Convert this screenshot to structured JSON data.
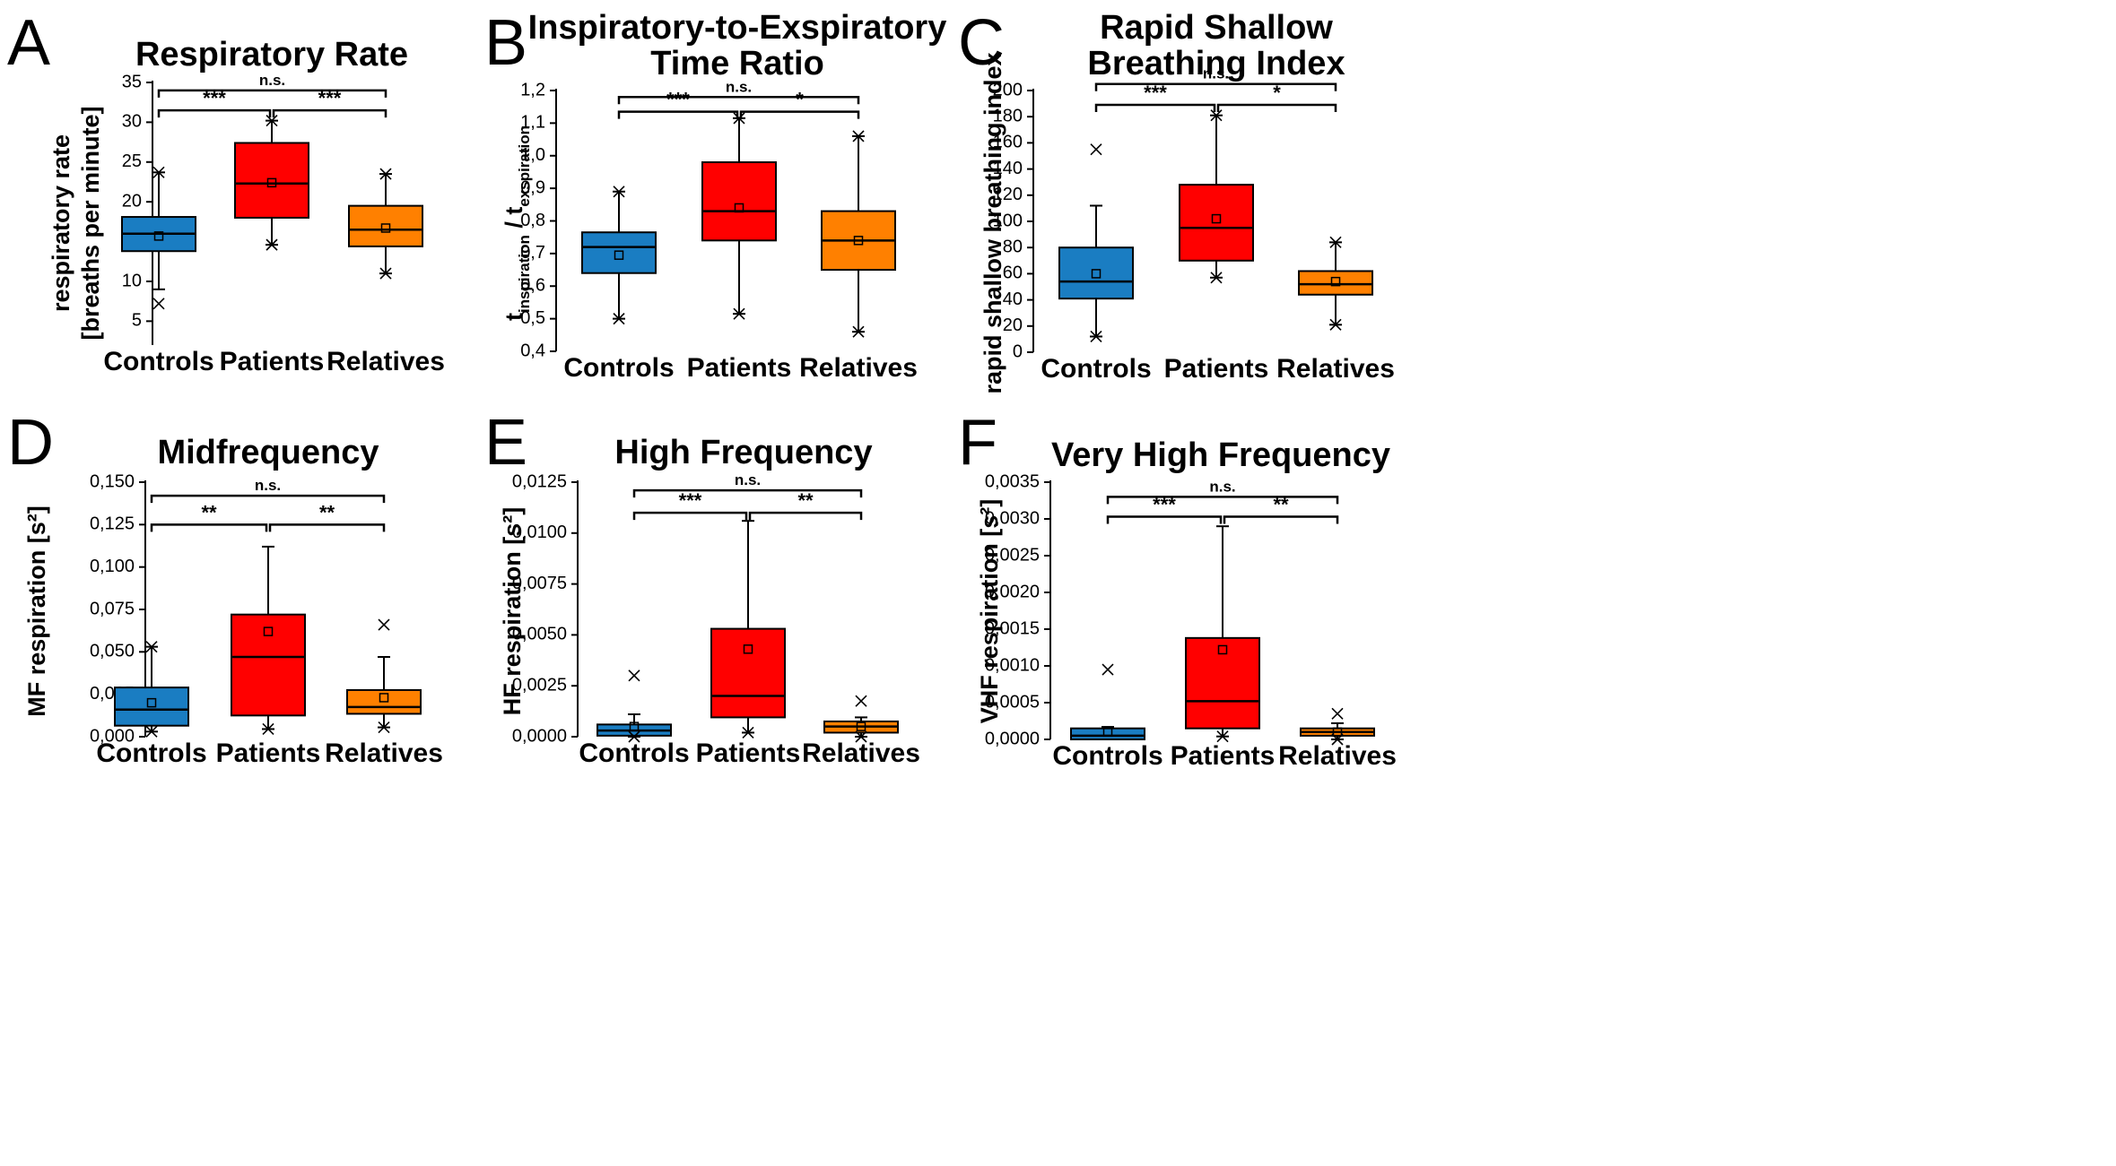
{
  "colors": {
    "controls": "#1a7dc2",
    "patients": "#ff0000",
    "relatives": "#ff8000",
    "ink": "#000000"
  },
  "chart_data": [
    {
      "type": "box",
      "panel_letter": "A",
      "title": [
        "Respiratory Rate"
      ],
      "ylabel": [
        "respiratory rate",
        "[breaths per minute]"
      ],
      "ylim": [
        2,
        35
      ],
      "yticks": [
        5,
        10,
        15,
        20,
        25,
        30,
        35
      ],
      "yticklabels": [
        "5",
        "10",
        "15",
        "20",
        "25",
        "30",
        "35"
      ],
      "categories": [
        "Controls",
        "Patients",
        "Relatives"
      ],
      "boxes": [
        {
          "q1": 13.8,
          "median": 16.0,
          "q3": 18.1,
          "mean": 15.7,
          "whisker_low": 9.0,
          "whisker_high": 23.7,
          "outliers": [
            7.2,
            23.7
          ]
        },
        {
          "q1": 18.0,
          "median": 22.3,
          "q3": 27.4,
          "mean": 22.4,
          "whisker_low": 14.6,
          "whisker_high": 30.2,
          "outliers": [
            14.6,
            30.2
          ]
        },
        {
          "q1": 14.4,
          "median": 16.5,
          "q3": 19.5,
          "mean": 16.7,
          "whisker_low": 11.0,
          "whisker_high": 23.5,
          "outliers": [
            11.0,
            23.5
          ]
        }
      ],
      "significance": [
        {
          "from": 0,
          "to": 2,
          "y": 34.0,
          "label": "n.s."
        },
        {
          "from": 0,
          "to": 1,
          "y": 31.5,
          "label": "***"
        },
        {
          "from": 1,
          "to": 2,
          "y": 31.5,
          "label": "***"
        }
      ]
    },
    {
      "type": "box",
      "panel_letter": "B",
      "title": [
        "Inspiratory-to-Exspiratory",
        "Time Ratio"
      ],
      "ylabel_main": "t",
      "ylabel_sub1": "inspiration",
      "ylabel_mid": " / t",
      "ylabel_sub2": "exspiration",
      "ylim": [
        0.4,
        1.2
      ],
      "yticks": [
        0.4,
        0.5,
        0.6,
        0.7,
        0.8,
        0.9,
        1.0,
        1.1,
        1.2
      ],
      "yticklabels": [
        "0,4",
        "0,5",
        "0,6",
        "0,7",
        "0,8",
        "0,9",
        "1,0",
        "1,1",
        "1,2"
      ],
      "categories": [
        "Controls",
        "Patients",
        "Relatives"
      ],
      "boxes": [
        {
          "q1": 0.64,
          "median": 0.72,
          "q3": 0.765,
          "mean": 0.695,
          "whisker_low": 0.5,
          "whisker_high": 0.89,
          "outliers": [
            0.5,
            0.89
          ]
        },
        {
          "q1": 0.74,
          "median": 0.83,
          "q3": 0.98,
          "mean": 0.84,
          "whisker_low": 0.515,
          "whisker_high": 1.115,
          "outliers": [
            0.515,
            1.115
          ]
        },
        {
          "q1": 0.65,
          "median": 0.74,
          "q3": 0.83,
          "mean": 0.74,
          "whisker_low": 0.46,
          "whisker_high": 1.06,
          "outliers": [
            0.46,
            1.06
          ]
        }
      ],
      "significance": [
        {
          "from": 0,
          "to": 2,
          "y": 1.18,
          "label": "n.s."
        },
        {
          "from": 0,
          "to": 1,
          "y": 1.135,
          "label": "***"
        },
        {
          "from": 1,
          "to": 2,
          "y": 1.135,
          "label": "*"
        }
      ]
    },
    {
      "type": "box",
      "panel_letter": "C",
      "title": [
        "Rapid Shallow",
        "Breathing Index"
      ],
      "ylabel": [
        "rapid shallow breathing index"
      ],
      "ylim": [
        0,
        200
      ],
      "yticks": [
        0,
        20,
        40,
        60,
        80,
        100,
        120,
        140,
        160,
        180,
        200
      ],
      "yticklabels": [
        "0",
        "20",
        "40",
        "60",
        "80",
        "100",
        "120",
        "140",
        "160",
        "180",
        "200"
      ],
      "categories": [
        "Controls",
        "Patients",
        "Relatives"
      ],
      "boxes": [
        {
          "q1": 41,
          "median": 54,
          "q3": 80,
          "mean": 60,
          "whisker_low": 12,
          "whisker_high": 112,
          "outliers": [
            12,
            155
          ]
        },
        {
          "q1": 70,
          "median": 95,
          "q3": 128,
          "mean": 102,
          "whisker_low": 57,
          "whisker_high": 181,
          "outliers": [
            57,
            181
          ]
        },
        {
          "q1": 44,
          "median": 52,
          "q3": 62,
          "mean": 54,
          "whisker_low": 21,
          "whisker_high": 84,
          "outliers": [
            21,
            84
          ]
        }
      ],
      "significance": [
        {
          "from": 0,
          "to": 2,
          "y": 205,
          "label": "n.s."
        },
        {
          "from": 0,
          "to": 1,
          "y": 189,
          "label": "***"
        },
        {
          "from": 1,
          "to": 2,
          "y": 189,
          "label": "*"
        }
      ]
    },
    {
      "type": "box",
      "panel_letter": "D",
      "title": [
        "Midfrequency"
      ],
      "ylabel": [
        "MF respiration [s²]"
      ],
      "ylim": [
        0,
        0.15
      ],
      "yticks": [
        0,
        0.025,
        0.05,
        0.075,
        0.1,
        0.125,
        0.15
      ],
      "yticklabels": [
        "0,000",
        "0,025",
        "0,050",
        "0,075",
        "0,100",
        "0,125",
        "0,150"
      ],
      "categories": [
        "Controls",
        "Patients",
        "Relatives"
      ],
      "boxes": [
        {
          "q1": 0.0065,
          "median": 0.016,
          "q3": 0.029,
          "mean": 0.02,
          "whisker_low": 0.003,
          "whisker_high": 0.053,
          "outliers": [
            0.003,
            0.053
          ]
        },
        {
          "q1": 0.0125,
          "median": 0.047,
          "q3": 0.072,
          "mean": 0.062,
          "whisker_low": 0.0045,
          "whisker_high": 0.112,
          "outliers": [
            0.0045
          ]
        },
        {
          "q1": 0.0135,
          "median": 0.0175,
          "q3": 0.0275,
          "mean": 0.023,
          "whisker_low": 0.0055,
          "whisker_high": 0.047,
          "outliers": [
            0.0055,
            0.066
          ]
        }
      ],
      "significance": [
        {
          "from": 0,
          "to": 2,
          "y": 0.142,
          "label": "n.s."
        },
        {
          "from": 0,
          "to": 1,
          "y": 0.125,
          "label": "**"
        },
        {
          "from": 1,
          "to": 2,
          "y": 0.125,
          "label": "**"
        }
      ]
    },
    {
      "type": "box",
      "panel_letter": "E",
      "title": [
        "High Frequency"
      ],
      "ylabel": [
        "HF respiration [s²]"
      ],
      "ylim": [
        0,
        0.0125
      ],
      "yticks": [
        0,
        0.0025,
        0.005,
        0.0075,
        0.01,
        0.0125
      ],
      "yticklabels": [
        "0,0000",
        "0,0025",
        "0,0050",
        "0,0075",
        "0,0100",
        "0,0125"
      ],
      "categories": [
        "Controls",
        "Patients",
        "Relatives"
      ],
      "boxes": [
        {
          "q1": 5e-05,
          "median": 0.0003,
          "q3": 0.0006,
          "mean": 0.0005,
          "whisker_low": 0.0,
          "whisker_high": 0.0011,
          "outliers": [
            0.0,
            0.003
          ]
        },
        {
          "q1": 0.00095,
          "median": 0.002,
          "q3": 0.0053,
          "mean": 0.0043,
          "whisker_low": 0.0002,
          "whisker_high": 0.0106,
          "outliers": [
            0.0002
          ]
        },
        {
          "q1": 0.0002,
          "median": 0.0005,
          "q3": 0.00075,
          "mean": 0.0005,
          "whisker_low": 0.0,
          "whisker_high": 0.00095,
          "outliers": [
            0.0,
            0.00175
          ]
        }
      ],
      "significance": [
        {
          "from": 0,
          "to": 2,
          "y": 0.0121,
          "label": "n.s."
        },
        {
          "from": 0,
          "to": 1,
          "y": 0.011,
          "label": "***"
        },
        {
          "from": 1,
          "to": 2,
          "y": 0.011,
          "label": "**"
        }
      ]
    },
    {
      "type": "box",
      "panel_letter": "F",
      "title": [
        "Very High Frequency"
      ],
      "ylabel": [
        "VHF respiration [s²]"
      ],
      "ylim": [
        0,
        0.0035
      ],
      "yticks": [
        0,
        0.0005,
        0.001,
        0.0015,
        0.002,
        0.0025,
        0.003,
        0.0035
      ],
      "yticklabels": [
        "0,0000",
        "0,0005",
        "0,0010",
        "0,0015",
        "0,0020",
        "0,0025",
        "0,0030",
        "0,0035"
      ],
      "categories": [
        "Controls",
        "Patients",
        "Relatives"
      ],
      "boxes": [
        {
          "q1": 0.0,
          "median": 5e-05,
          "q3": 0.00015,
          "mean": 0.0001,
          "whisker_low": 0.0,
          "whisker_high": 0.00017,
          "outliers": [
            0.00095
          ]
        },
        {
          "q1": 0.00015,
          "median": 0.00052,
          "q3": 0.00138,
          "mean": 0.00122,
          "whisker_low": 4e-05,
          "whisker_high": 0.0029,
          "outliers": [
            4e-05
          ]
        },
        {
          "q1": 5e-05,
          "median": 0.0001,
          "q3": 0.00015,
          "mean": 0.0001,
          "whisker_low": 0.0,
          "whisker_high": 0.00022,
          "outliers": [
            0.0,
            0.00035
          ]
        }
      ],
      "significance": [
        {
          "from": 0,
          "to": 2,
          "y": 0.0033,
          "label": "n.s."
        },
        {
          "from": 0,
          "to": 1,
          "y": 0.00303,
          "label": "***"
        },
        {
          "from": 1,
          "to": 2,
          "y": 0.00303,
          "label": "**"
        }
      ]
    }
  ]
}
